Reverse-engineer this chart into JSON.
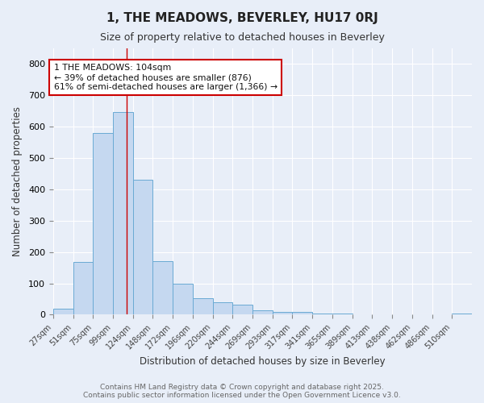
{
  "title": "1, THE MEADOWS, BEVERLEY, HU17 0RJ",
  "subtitle": "Size of property relative to detached houses in Beverley",
  "xlabel": "Distribution of detached houses by size in Beverley",
  "ylabel": "Number of detached properties",
  "categories": [
    "27sqm",
    "51sqm",
    "75sqm",
    "99sqm",
    "124sqm",
    "148sqm",
    "172sqm",
    "196sqm",
    "220sqm",
    "244sqm",
    "269sqm",
    "293sqm",
    "317sqm",
    "341sqm",
    "365sqm",
    "389sqm",
    "413sqm",
    "438sqm",
    "462sqm",
    "486sqm",
    "510sqm"
  ],
  "values": [
    18,
    168,
    580,
    648,
    430,
    172,
    100,
    52,
    40,
    33,
    15,
    10,
    8,
    4,
    3,
    2,
    1,
    1,
    0,
    0,
    4
  ],
  "bar_color": "#c5d8f0",
  "bar_edge_color": "#6aaad4",
  "background_color": "#e8eef8",
  "grid_color": "#ffffff",
  "property_line_color": "#cc0000",
  "annotation_text": "1 THE MEADOWS: 104sqm\n← 39% of detached houses are smaller (876)\n61% of semi-detached houses are larger (1,366) →",
  "annotation_box_color": "#ffffff",
  "annotation_box_edge": "#cc0000",
  "footnote": "Contains HM Land Registry data © Crown copyright and database right 2025.\nContains public sector information licensed under the Open Government Licence v3.0.",
  "ylim": [
    0,
    850
  ],
  "yticks": [
    0,
    100,
    200,
    300,
    400,
    500,
    600,
    700,
    800
  ],
  "bin_width": 24,
  "bin_starts": [
    15,
    39,
    63,
    87,
    111,
    135,
    159,
    183,
    207,
    231,
    255,
    279,
    303,
    327,
    351,
    375,
    399,
    423,
    447,
    471,
    495
  ],
  "property_sqm": 104
}
